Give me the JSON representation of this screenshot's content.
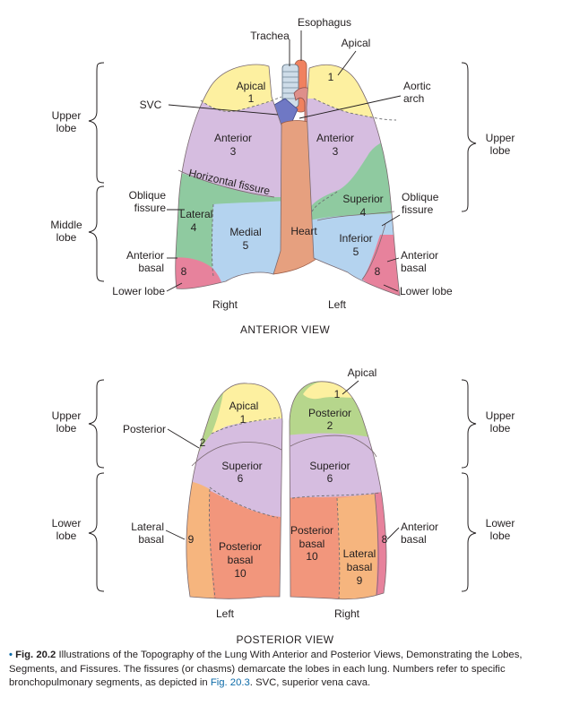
{
  "anterior": {
    "labels": {
      "esophagus": "Esophagus",
      "trachea": "Trachea",
      "apical_top": "Apical",
      "svc": "SVC",
      "aortic_arch": "Aortic arch",
      "upper_lobe_left": "Upper lobe",
      "upper_lobe_right": "Upper lobe",
      "middle_lobe": "Middle lobe",
      "oblique_fissure_left": "Oblique fissure",
      "oblique_fissure_right": "Oblique fissure",
      "horizontal_fissure": "Horizontal fissure",
      "anterior_basal_left": "Anterior basal",
      "anterior_basal_right": "Anterior basal",
      "lower_lobe_left": "Lower lobe",
      "lower_lobe_right": "Lower lobe",
      "heart": "Heart",
      "right": "Right",
      "left": "Left"
    },
    "segments": {
      "apical_r": {
        "name": "Apical",
        "num": "1"
      },
      "apical_l_num": "1",
      "anterior_r": {
        "name": "Anterior",
        "num": "3"
      },
      "anterior_l": {
        "name": "Anterior",
        "num": "3"
      },
      "lateral": {
        "name": "Lateral",
        "num": "4"
      },
      "medial": {
        "name": "Medial",
        "num": "5"
      },
      "superior_l": {
        "name": "Superior",
        "num": "4"
      },
      "inferior_l": {
        "name": "Inferior",
        "num": "5"
      },
      "basal_r_num": "8",
      "basal_l_num": "8"
    },
    "view_title": "ANTERIOR VIEW"
  },
  "posterior": {
    "labels": {
      "apical_top": "Apical",
      "upper_lobe_left": "Upper lobe",
      "upper_lobe_right": "Upper lobe",
      "lower_lobe_left": "Lower lobe",
      "lower_lobe_right": "Lower lobe",
      "posterior": "Posterior",
      "lateral_basal": "Lateral basal",
      "anterior_basal": "Anterior basal",
      "left": "Left",
      "right": "Right"
    },
    "segments": {
      "apical_l": {
        "name": "Apical",
        "num": "1"
      },
      "posterior_l_num": "2",
      "superior_l": {
        "name": "Superior",
        "num": "6"
      },
      "lateral_basal_num": "9",
      "posterior_basal_l": {
        "name": "Posterior basal",
        "num": "10"
      },
      "posterior_r": {
        "name": "Posterior",
        "num": "2"
      },
      "apical_r_num": "1",
      "superior_r": {
        "name": "Superior",
        "num": "6"
      },
      "posterior_basal_r": {
        "name": "Posterior basal",
        "num": "10"
      },
      "lateral_basal_r": {
        "name": "Lateral basal",
        "num": "9"
      },
      "anterior_basal_r_num": "8"
    },
    "view_title": "POSTERIOR VIEW"
  },
  "caption": {
    "bullet": "•",
    "fig_label": "Fig. 20.2",
    "title_text": "Illustrations of the Topography of the Lung With Anterior and Posterior Views, Demonstrating the Lobes, Segments, and Fissures.",
    "body_text": "The fissures (or chasms) demarcate the lobes in each lung. Numbers refer to specific bronchopulmonary segments, as depicted in",
    "fig_ref": "Fig. 20.3",
    "tail_text": ". SVC, superior vena cava."
  },
  "colors": {
    "apical_yellow": "#fdf0a0",
    "anterior_purple": "#d6bde0",
    "lateral_green": "#8fcaa0",
    "medial_blue": "#b4d3ef",
    "basal_pink": "#e7829c",
    "heart_orange": "#e6a07f",
    "posterior_green": "#b6d68c",
    "lat_basal_orange": "#f6b57e",
    "post_basal_salmon": "#f2967c",
    "caption_blue": "#0b6aa8"
  }
}
